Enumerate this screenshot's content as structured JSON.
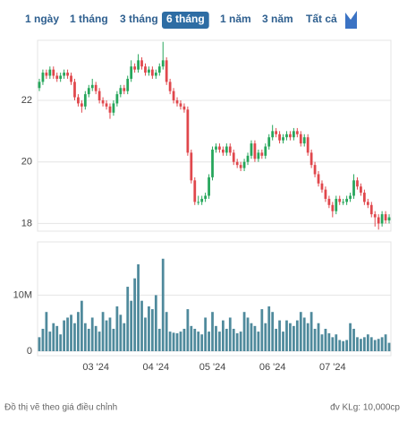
{
  "toolbar": {
    "ranges": [
      "1 ngày",
      "1 tháng",
      "3 tháng",
      "6 tháng",
      "1 năm",
      "3 năm",
      "Tất cả"
    ],
    "active": 3
  },
  "footer": {
    "note": "Đồ thị vẽ theo giá điều chỉnh",
    "unit": "đv KLg: 10,000cp"
  },
  "chart_data": [
    {
      "type": "candlestick",
      "up_color": "#26a65b",
      "down_color": "#e0474c",
      "grid": true,
      "ylim": [
        17.75,
        23.95
      ],
      "yticks": [
        18,
        20,
        22
      ],
      "categories": [
        null,
        null,
        null,
        null,
        null,
        null,
        null,
        null,
        null,
        null,
        null,
        null,
        null,
        null,
        null,
        null,
        "03 '24",
        null,
        null,
        null,
        null,
        null,
        null,
        null,
        null,
        null,
        null,
        null,
        null,
        null,
        null,
        null,
        null,
        "04 '24",
        null,
        null,
        null,
        null,
        null,
        null,
        null,
        null,
        null,
        null,
        null,
        null,
        null,
        null,
        null,
        "05 '24",
        null,
        null,
        null,
        null,
        null,
        null,
        null,
        null,
        null,
        null,
        null,
        null,
        null,
        null,
        null,
        null,
        "06 '24",
        null,
        null,
        null,
        null,
        null,
        null,
        null,
        null,
        null,
        null,
        null,
        null,
        null,
        null,
        null,
        null,
        "07 '24",
        null,
        null,
        null,
        null,
        null,
        null,
        null,
        null,
        null,
        null,
        null,
        null,
        null,
        null,
        null,
        null
      ],
      "open": [
        22.4,
        22.6,
        22.9,
        22.8,
        23.0,
        22.8,
        22.7,
        22.8,
        22.9,
        22.8,
        22.6,
        22.1,
        21.9,
        21.8,
        22.2,
        22.4,
        22.5,
        22.3,
        22.0,
        21.9,
        21.8,
        21.6,
        21.9,
        22.2,
        22.4,
        22.3,
        22.7,
        23.1,
        23.0,
        23.3,
        23.1,
        22.9,
        23.0,
        22.8,
        22.9,
        23.1,
        23.3,
        22.6,
        22.3,
        22.0,
        21.9,
        21.8,
        21.7,
        20.3,
        19.4,
        18.7,
        18.7,
        18.8,
        18.9,
        19.5,
        20.4,
        20.5,
        20.4,
        20.3,
        20.5,
        20.3,
        20.0,
        19.9,
        19.8,
        20.0,
        20.2,
        20.6,
        20.1,
        20.3,
        20.2,
        20.5,
        20.8,
        21.0,
        20.9,
        20.7,
        20.8,
        20.9,
        20.8,
        21.0,
        20.9,
        20.6,
        20.8,
        20.3,
        19.9,
        19.6,
        19.3,
        19.1,
        18.8,
        18.6,
        18.4,
        18.8,
        18.7,
        18.7,
        18.8,
        18.9,
        19.4,
        19.2,
        19.0,
        18.7,
        18.6,
        18.3,
        18.2,
        18.0,
        18.3,
        18.1
      ],
      "high": [
        22.7,
        23.0,
        23.0,
        23.1,
        23.1,
        22.9,
        22.9,
        23.0,
        23.0,
        22.9,
        22.7,
        22.2,
        22.0,
        22.3,
        22.5,
        22.7,
        22.6,
        22.4,
        22.1,
        22.0,
        21.9,
        22.0,
        22.3,
        22.5,
        22.5,
        22.8,
        23.3,
        23.2,
        23.5,
        23.4,
        23.2,
        23.1,
        23.1,
        23.0,
        23.2,
        23.9,
        23.4,
        22.7,
        22.4,
        22.1,
        22.0,
        21.9,
        21.8,
        20.4,
        19.5,
        18.9,
        18.9,
        19.0,
        19.6,
        20.5,
        20.6,
        20.6,
        20.5,
        20.6,
        20.6,
        20.4,
        20.1,
        20.0,
        20.1,
        20.3,
        20.7,
        20.7,
        20.4,
        20.4,
        20.6,
        20.9,
        21.2,
        21.1,
        21.0,
        20.9,
        21.0,
        21.0,
        21.1,
        21.1,
        21.0,
        20.9,
        20.9,
        20.4,
        20.0,
        19.7,
        19.4,
        19.2,
        18.9,
        18.7,
        18.9,
        18.9,
        18.8,
        18.9,
        19.0,
        19.6,
        19.5,
        19.3,
        19.1,
        18.8,
        18.7,
        18.4,
        18.3,
        18.4,
        18.4,
        18.3
      ],
      "low": [
        22.3,
        22.5,
        22.7,
        22.7,
        22.7,
        22.6,
        22.6,
        22.7,
        22.7,
        22.5,
        22.0,
        21.8,
        21.6,
        21.7,
        22.1,
        22.3,
        22.2,
        21.9,
        21.8,
        21.7,
        21.4,
        21.5,
        21.8,
        22.1,
        22.2,
        22.2,
        22.6,
        22.9,
        22.9,
        23.0,
        22.8,
        22.8,
        22.7,
        22.7,
        22.8,
        23.0,
        22.5,
        22.2,
        21.9,
        21.8,
        21.7,
        21.6,
        20.2,
        19.3,
        18.6,
        18.6,
        18.6,
        18.7,
        18.8,
        19.4,
        20.3,
        20.3,
        20.2,
        20.2,
        20.2,
        19.9,
        19.8,
        19.7,
        19.7,
        19.9,
        20.1,
        20.0,
        20.0,
        20.1,
        20.1,
        20.4,
        20.7,
        20.8,
        20.6,
        20.6,
        20.7,
        20.7,
        20.7,
        20.8,
        20.5,
        20.5,
        20.2,
        19.8,
        19.5,
        19.2,
        19.0,
        18.7,
        18.5,
        18.2,
        18.3,
        18.6,
        18.6,
        18.6,
        18.7,
        18.8,
        19.1,
        18.9,
        18.6,
        18.5,
        18.2,
        17.9,
        17.8,
        17.9,
        18.0,
        18.0
      ],
      "close": [
        22.6,
        22.9,
        22.8,
        23.0,
        22.8,
        22.7,
        22.8,
        22.9,
        22.8,
        22.6,
        22.1,
        21.9,
        21.8,
        22.2,
        22.4,
        22.5,
        22.3,
        22.0,
        21.9,
        21.8,
        21.6,
        21.9,
        22.2,
        22.4,
        22.3,
        22.7,
        23.1,
        23.0,
        23.3,
        23.1,
        22.9,
        23.0,
        22.8,
        22.9,
        23.1,
        23.3,
        22.6,
        22.3,
        22.0,
        21.9,
        21.8,
        21.7,
        20.3,
        19.4,
        18.7,
        18.7,
        18.8,
        18.9,
        19.5,
        20.4,
        20.5,
        20.4,
        20.3,
        20.5,
        20.3,
        20.0,
        19.9,
        19.8,
        20.0,
        20.2,
        20.6,
        20.1,
        20.3,
        20.2,
        20.5,
        20.8,
        21.0,
        20.9,
        20.7,
        20.8,
        20.9,
        20.8,
        21.0,
        20.9,
        20.6,
        20.8,
        20.3,
        19.9,
        19.6,
        19.3,
        19.1,
        18.8,
        18.6,
        18.4,
        18.8,
        18.7,
        18.7,
        18.8,
        18.9,
        19.4,
        19.2,
        19.0,
        18.7,
        18.6,
        18.3,
        18.2,
        18.0,
        18.3,
        18.1,
        18.2
      ]
    },
    {
      "type": "bar",
      "color": "#4f8a9c",
      "grid": true,
      "ylim": [
        -0.8,
        19.5
      ],
      "yticks": [
        0,
        {
          "value": 10,
          "label": "10M"
        }
      ],
      "values": [
        2.5,
        4,
        7,
        3.5,
        5,
        4.5,
        3,
        5.5,
        6,
        6.5,
        5,
        7,
        9,
        5,
        4,
        6,
        4.5,
        3.5,
        7,
        5.5,
        6,
        4,
        8,
        6.5,
        5,
        11.5,
        9,
        13,
        15.5,
        9,
        6,
        8,
        7.5,
        10,
        4,
        16.5,
        7,
        3.5,
        3.3,
        3.2,
        3.5,
        4,
        7.5,
        4.5,
        4,
        3.5,
        3,
        6,
        3.5,
        7,
        4.5,
        3.5,
        5.5,
        4,
        6,
        4,
        3.2,
        3.5,
        7,
        6,
        5,
        4.5,
        3.5,
        7.5,
        5,
        8,
        7,
        4,
        5.5,
        3.5,
        5.5,
        5,
        4.5,
        5.5,
        7,
        6,
        5,
        7,
        4,
        5,
        3,
        4,
        3.2,
        2.5,
        3,
        2,
        1.8,
        2,
        5,
        4,
        2.5,
        2.2,
        2.5,
        3,
        2.5,
        2,
        2.2,
        2.5,
        3,
        1.5
      ]
    }
  ]
}
